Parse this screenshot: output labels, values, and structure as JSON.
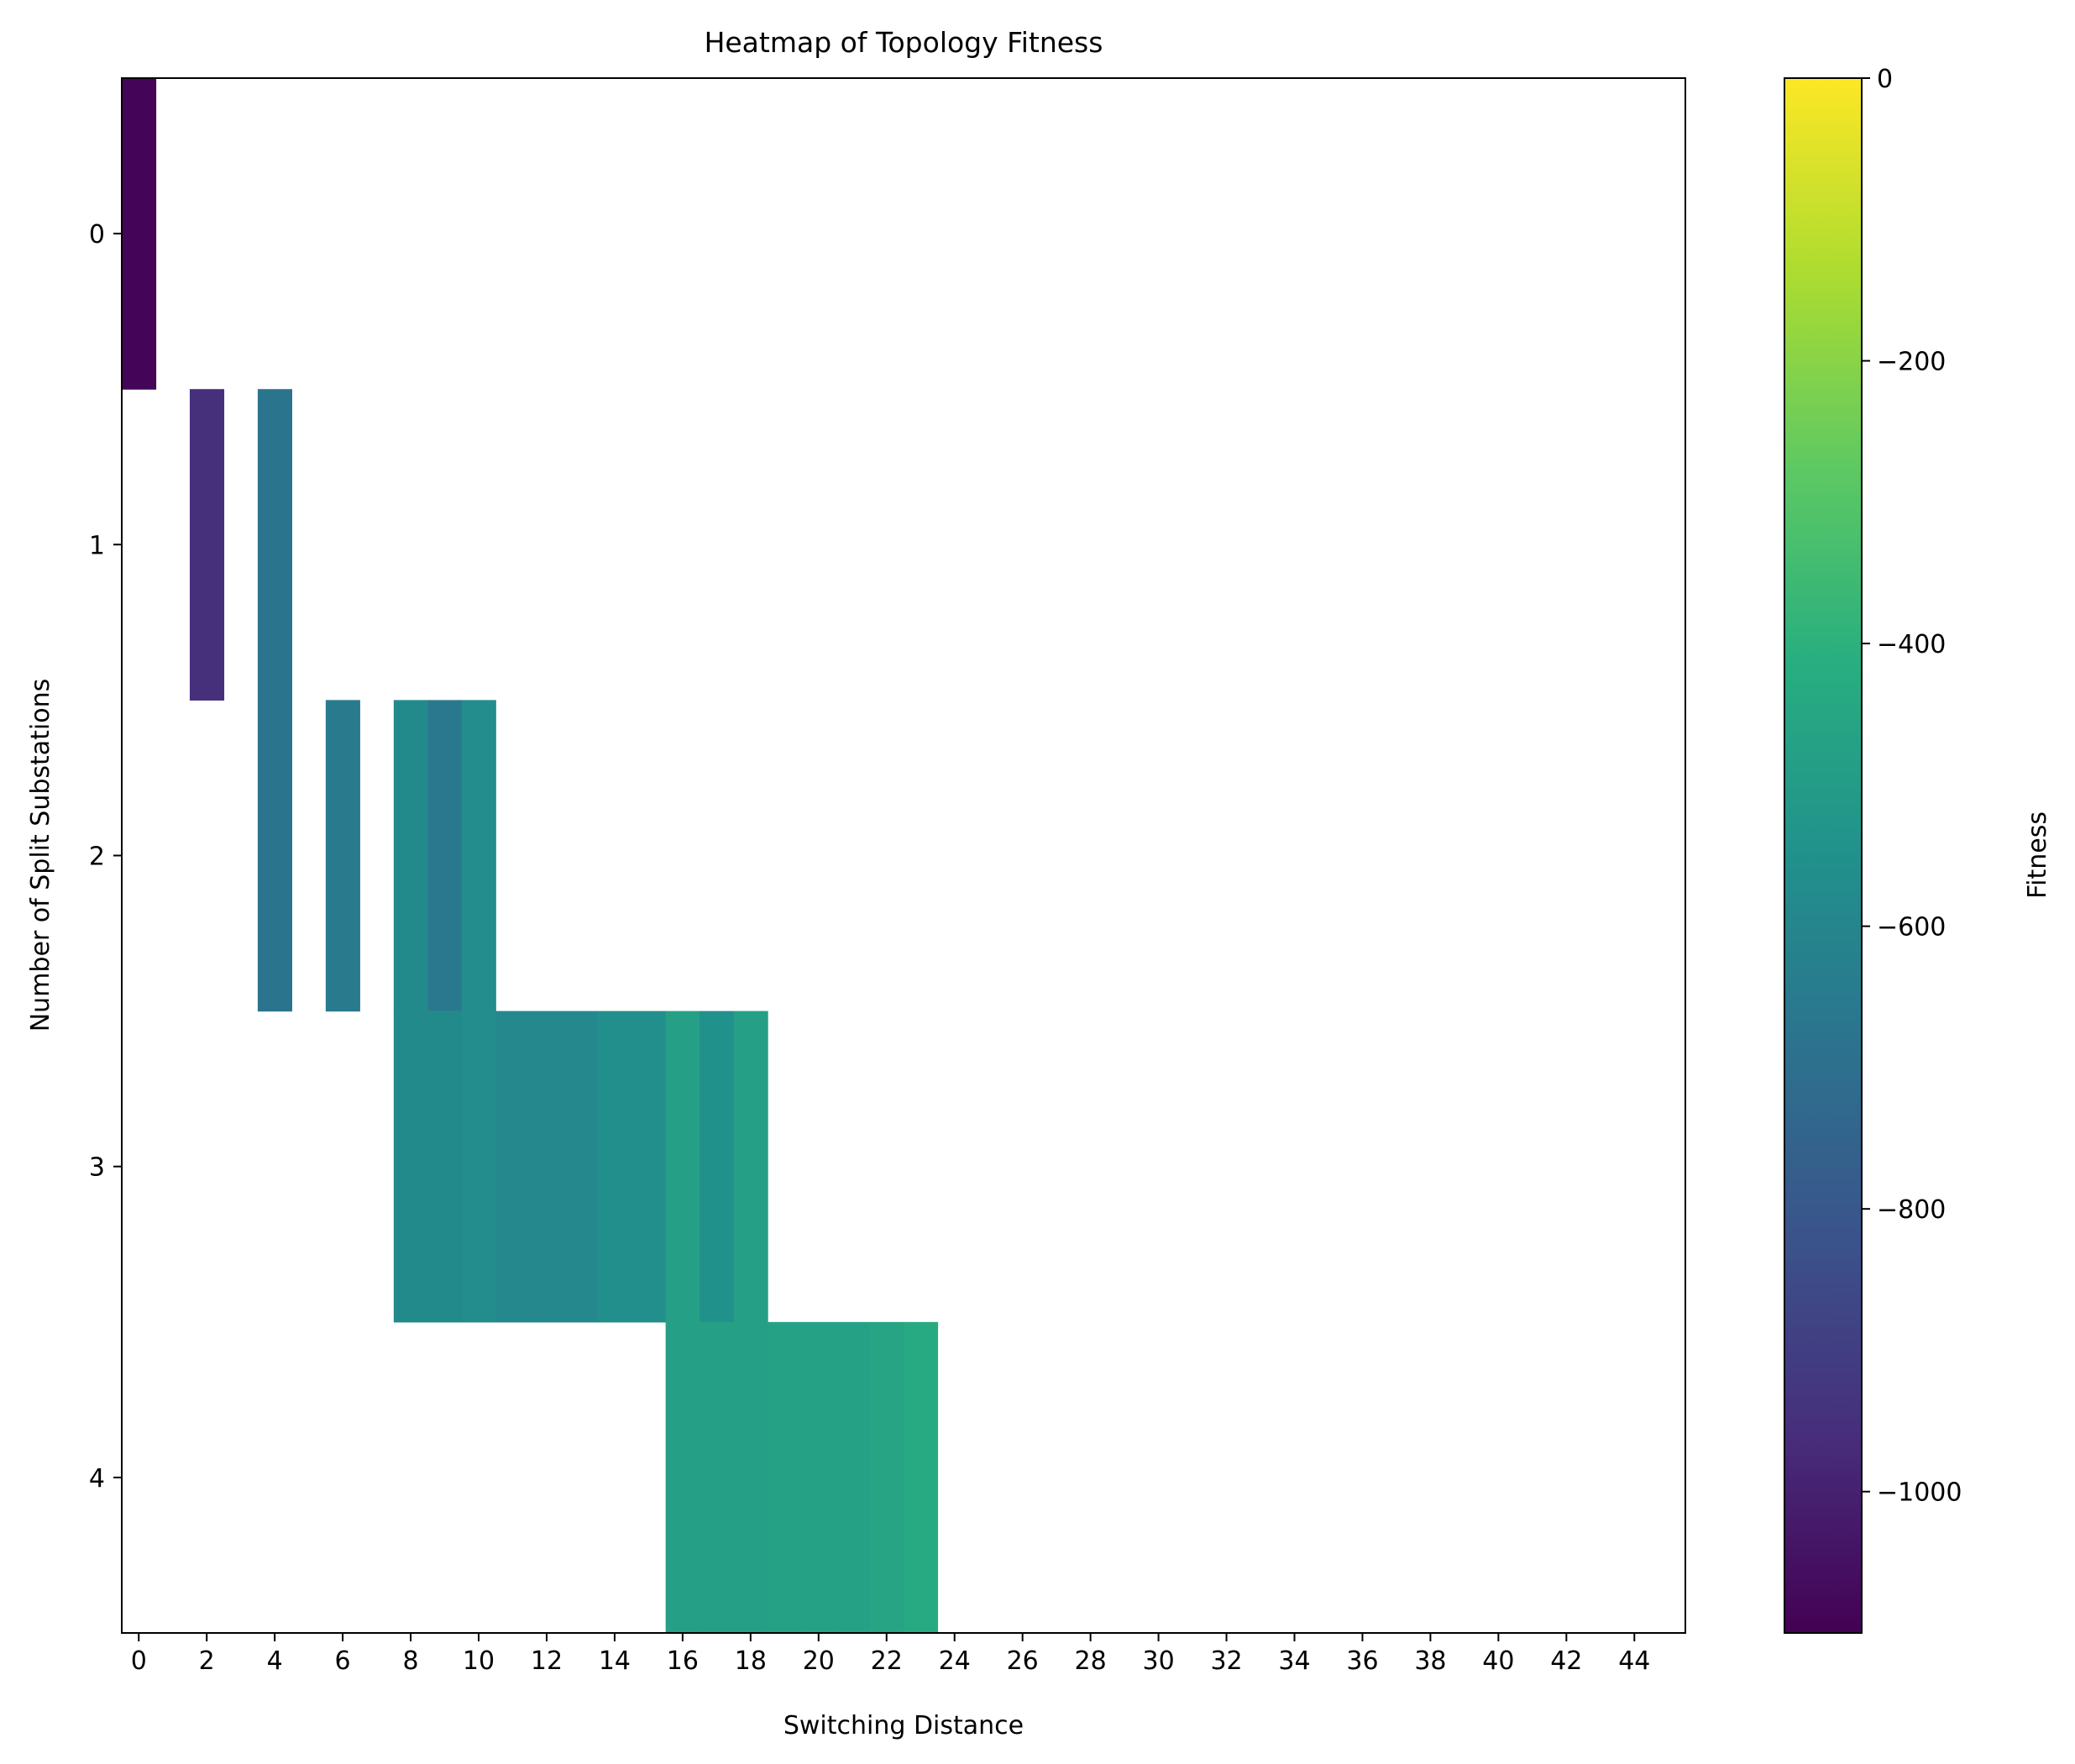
{
  "chart_data": {
    "type": "heatmap",
    "title": "Heatmap of Topology Fitness",
    "xlabel": "Switching Distance",
    "ylabel": "Number of Split Substations",
    "colorbar_label": "Fitness",
    "colormap": "viridis",
    "xlim": [
      -0.5,
      45.5
    ],
    "ylim": [
      4.5,
      -0.5
    ],
    "clim": [
      -1100,
      0
    ],
    "x_ticks": [
      0,
      2,
      4,
      6,
      8,
      10,
      12,
      14,
      16,
      18,
      20,
      22,
      24,
      26,
      28,
      30,
      32,
      34,
      36,
      38,
      40,
      42,
      44
    ],
    "y_ticks": [
      0,
      1,
      2,
      3,
      4
    ],
    "colorbar_ticks": [
      0,
      -200,
      -400,
      -600,
      -800,
      -1000
    ],
    "colorbar_tick_labels": [
      "0",
      "−200",
      "−400",
      "−600",
      "−800",
      "−1000"
    ],
    "cells": [
      {
        "x": 0,
        "y": 0,
        "value": -1090
      },
      {
        "x": 2,
        "y": 1,
        "value": -950
      },
      {
        "x": 4,
        "y": 1,
        "value": -680
      },
      {
        "x": 4,
        "y": 2,
        "value": -680
      },
      {
        "x": 6,
        "y": 2,
        "value": -650
      },
      {
        "x": 8,
        "y": 2,
        "value": -580
      },
      {
        "x": 9,
        "y": 2,
        "value": -660
      },
      {
        "x": 10,
        "y": 2,
        "value": -570
      },
      {
        "x": 8,
        "y": 3,
        "value": -580
      },
      {
        "x": 9,
        "y": 3,
        "value": -580
      },
      {
        "x": 10,
        "y": 3,
        "value": -570
      },
      {
        "x": 11,
        "y": 3,
        "value": -590
      },
      {
        "x": 12,
        "y": 3,
        "value": -590
      },
      {
        "x": 13,
        "y": 3,
        "value": -590
      },
      {
        "x": 14,
        "y": 3,
        "value": -560
      },
      {
        "x": 15,
        "y": 3,
        "value": -560
      },
      {
        "x": 16,
        "y": 3,
        "value": -480
      },
      {
        "x": 17,
        "y": 3,
        "value": -550
      },
      {
        "x": 18,
        "y": 3,
        "value": -480
      },
      {
        "x": 16,
        "y": 4,
        "value": -480
      },
      {
        "x": 17,
        "y": 4,
        "value": -480
      },
      {
        "x": 18,
        "y": 4,
        "value": -480
      },
      {
        "x": 19,
        "y": 4,
        "value": -470
      },
      {
        "x": 20,
        "y": 4,
        "value": -470
      },
      {
        "x": 21,
        "y": 4,
        "value": -470
      },
      {
        "x": 22,
        "y": 4,
        "value": -460
      },
      {
        "x": 23,
        "y": 4,
        "value": -430
      }
    ]
  }
}
